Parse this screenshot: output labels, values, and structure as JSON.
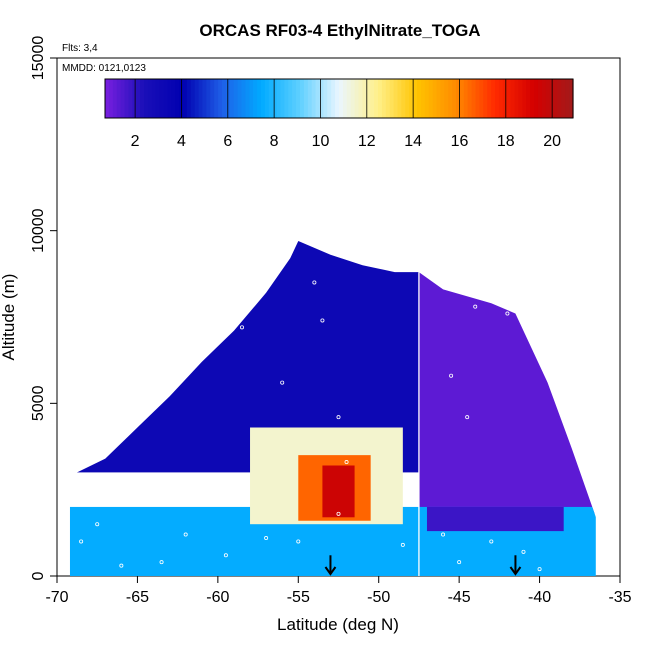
{
  "chart_data": {
    "type": "heatmap",
    "title": "ORCAS RF03-4 EthylNitrate_TOGA",
    "notes": [
      "Flts: 3,4",
      "MMDD: 0121,0123"
    ],
    "xlabel": "Latitude (deg N)",
    "ylabel": "Altitude (m)",
    "xlim": [
      -70,
      -35
    ],
    "ylim": [
      0,
      15000
    ],
    "x_ticks": [
      "-70",
      "-65",
      "-60",
      "-55",
      "-50",
      "-45",
      "-40",
      "-35"
    ],
    "y_ticks": [
      "0",
      "5000",
      "10000",
      "15000"
    ],
    "colorbar": {
      "range": [
        0.7,
        20.9
      ],
      "ticks": [
        "2",
        "4",
        "6",
        "8",
        "10",
        "12",
        "14",
        "16",
        "18",
        "20"
      ],
      "colors": [
        "#7a1fe0",
        "#1a0fb8",
        "#0000b0",
        "#1f5fe8",
        "#00aaff",
        "#5fd0ff",
        "#eaf6ff",
        "#fff08a",
        "#ffc400",
        "#ff8a00",
        "#ff2a00",
        "#d40000",
        "#a31a1a"
      ]
    },
    "altitude_envelope": [
      {
        "lat": -69.2,
        "alt": 2900
      },
      {
        "lat": -67,
        "alt": 3400
      },
      {
        "lat": -65,
        "alt": 4300
      },
      {
        "lat": -63,
        "alt": 5200
      },
      {
        "lat": -61,
        "alt": 6200
      },
      {
        "lat": -59,
        "alt": 7100
      },
      {
        "lat": -57,
        "alt": 8200
      },
      {
        "lat": -55.5,
        "alt": 9200
      },
      {
        "lat": -55,
        "alt": 9700
      },
      {
        "lat": -53,
        "alt": 9300
      },
      {
        "lat": -51,
        "alt": 9000
      },
      {
        "lat": -49,
        "alt": 8800
      },
      {
        "lat": -47.5,
        "alt": 8800
      },
      {
        "lat": -46,
        "alt": 8300
      },
      {
        "lat": -43,
        "alt": 7900
      },
      {
        "lat": -41.5,
        "alt": 7600
      },
      {
        "lat": -39.5,
        "alt": 5600
      },
      {
        "lat": -38,
        "alt": 3700
      },
      {
        "lat": -36.5,
        "alt": 1700
      },
      {
        "lat": -36.5,
        "alt": 0
      },
      {
        "lat": -69.2,
        "alt": 0
      }
    ],
    "regions": [
      {
        "lat_range": [
          -69.2,
          -47.5
        ],
        "alt_range": [
          3000,
          9700
        ],
        "value": 3.2
      },
      {
        "lat_range": [
          -47.5,
          -36.5
        ],
        "alt_range": [
          1800,
          8800
        ],
        "value": 1.2
      },
      {
        "lat_range": [
          -69.2,
          -36.5
        ],
        "alt_range": [
          0,
          2000
        ],
        "value": 7.5
      },
      {
        "lat_range": [
          -58,
          -48.5
        ],
        "alt_range": [
          1500,
          4300
        ],
        "value": 11.5
      },
      {
        "lat_range": [
          -55,
          -50.5
        ],
        "alt_range": [
          1600,
          3500
        ],
        "value": 16.5
      },
      {
        "lat_range": [
          -53.5,
          -51.5
        ],
        "alt_range": [
          1700,
          3200
        ],
        "value": 19.5
      },
      {
        "lat_range": [
          -47,
          -38.5
        ],
        "alt_range": [
          1300,
          2000
        ],
        "value": 1.8
      }
    ],
    "sample_points": [
      {
        "lat": -54,
        "alt": 8500
      },
      {
        "lat": -53.5,
        "alt": 7400
      },
      {
        "lat": -58.5,
        "alt": 7200
      },
      {
        "lat": -56,
        "alt": 5600
      },
      {
        "lat": -52.5,
        "alt": 4600
      },
      {
        "lat": -44,
        "alt": 7800
      },
      {
        "lat": -42,
        "alt": 7600
      },
      {
        "lat": -45.5,
        "alt": 5800
      },
      {
        "lat": -44.5,
        "alt": 4600
      },
      {
        "lat": -60,
        "alt": 2900
      },
      {
        "lat": -64.5,
        "alt": 2650
      },
      {
        "lat": -67.5,
        "alt": 1500
      },
      {
        "lat": -62,
        "alt": 1200
      },
      {
        "lat": -57,
        "alt": 1100
      },
      {
        "lat": -52,
        "alt": 3300
      },
      {
        "lat": -52.5,
        "alt": 1800
      },
      {
        "lat": -46,
        "alt": 1200
      },
      {
        "lat": -43,
        "alt": 1000
      },
      {
        "lat": -41,
        "alt": 700
      },
      {
        "lat": -40,
        "alt": 200
      },
      {
        "lat": -45,
        "alt": 400
      },
      {
        "lat": -48.5,
        "alt": 900
      },
      {
        "lat": -55,
        "alt": 1000
      },
      {
        "lat": -59.5,
        "alt": 600
      },
      {
        "lat": -63.5,
        "alt": 400
      },
      {
        "lat": -66,
        "alt": 300
      },
      {
        "lat": -68.5,
        "alt": 1000
      }
    ],
    "vertical_line": {
      "lat": -47.5
    },
    "arrows": [
      {
        "lat": -53,
        "alt_from": 600,
        "alt_to": 0
      },
      {
        "lat": -41.5,
        "alt_from": 600,
        "alt_to": 0
      }
    ]
  }
}
